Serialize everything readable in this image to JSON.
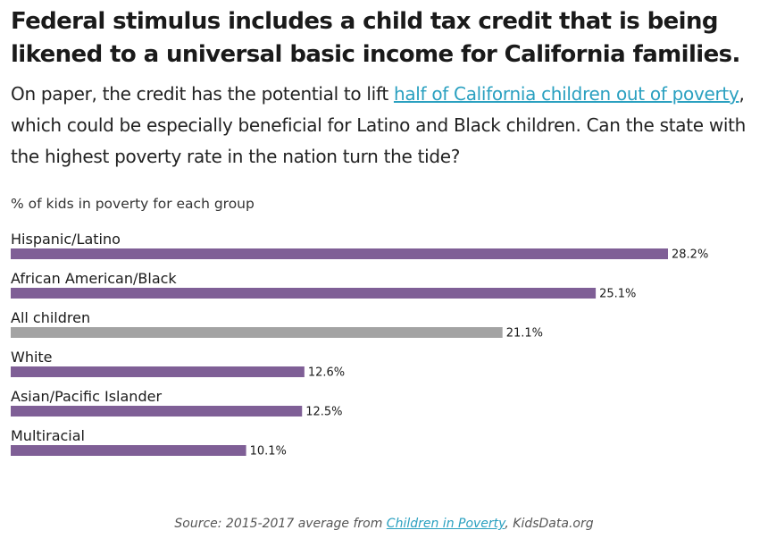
{
  "header": {
    "title": "Federal stimulus includes a child tax credit that is being likened to a universal basic income for California families.",
    "subtitle_before": "On paper, the credit has the potential to lift ",
    "subtitle_link": "half of California children out of poverty",
    "subtitle_after": ", which could be especially beneficial for Latino and Black children. Can the state with the highest poverty rate in the nation turn the tide?"
  },
  "chart_label": "% of kids in poverty for each group",
  "colors": {
    "bar": "#7f5f96",
    "bar_highlight": "#a3a3a3",
    "link": "#2aa0c0"
  },
  "chart_data": {
    "type": "bar",
    "orientation": "horizontal",
    "title": "",
    "xlabel": "% of kids in poverty for each group",
    "ylabel": "",
    "categories": [
      "Hispanic/Latino",
      "African American/Black",
      "All children",
      "White",
      "Asian/Pacific Islander",
      "Multiracial"
    ],
    "values": [
      28.2,
      25.1,
      21.1,
      12.6,
      12.5,
      10.1
    ],
    "value_labels": [
      "28.2%",
      "25.1%",
      "21.1%",
      "12.6%",
      "12.5%",
      "10.1%"
    ],
    "highlight": [
      "All children"
    ],
    "xlim": [
      0,
      28.2
    ],
    "grid": false,
    "legend": "none"
  },
  "source": {
    "prefix": "Source: 2015-2017 average from ",
    "link": "Children in Poverty",
    "suffix": ", KidsData.org"
  }
}
